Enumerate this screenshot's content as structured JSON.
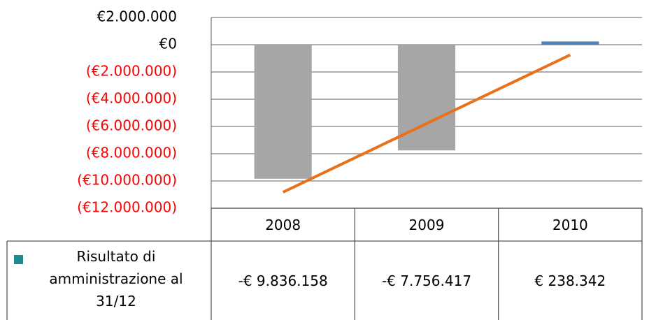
{
  "chart_data": {
    "type": "bar",
    "categories": [
      "2008",
      "2009",
      "2010"
    ],
    "series": [
      {
        "name": "Risultato di amministrazione al 31/12",
        "color": "#4f81bd",
        "negative_color": "#a6a6a6",
        "legend_color": "#1f8a8f",
        "values": [
          -9836158,
          -7756417,
          238342
        ],
        "value_labels": [
          "-€ 9.836.158",
          "-€ 7.756.417",
          "€ 238.342"
        ]
      }
    ],
    "ylim": [
      -12000000,
      2000000
    ],
    "yticks": [
      {
        "value": 2000000,
        "label": "€2.000.000"
      },
      {
        "value": 0,
        "label": "€0"
      },
      {
        "value": -2000000,
        "label": "(€2.000.000)"
      },
      {
        "value": -4000000,
        "label": "(€4.000.000)"
      },
      {
        "value": -6000000,
        "label": "(€6.000.000)"
      },
      {
        "value": -8000000,
        "label": "(€8.000.000)"
      },
      {
        "value": -10000000,
        "label": "(€10.000.000)"
      },
      {
        "value": -12000000,
        "label": "(€12.000.000)"
      }
    ],
    "negative_tick_color": "#ff0000",
    "grid": true,
    "trendline": {
      "type": "linear",
      "color": "#e8711c"
    },
    "data_table": true
  }
}
